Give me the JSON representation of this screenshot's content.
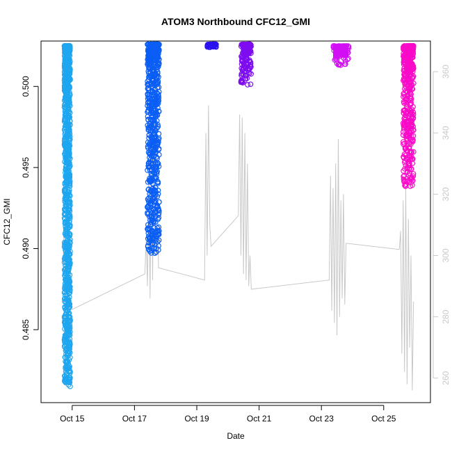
{
  "chart_data": {
    "type": "scatter",
    "title": "ATOM3 Northbound CFC12_GMI",
    "xlabel": "Date",
    "ylabel": "CFC12_GMI",
    "xlim": [
      "2016-10-14T00:00",
      "2016-10-26T12:00"
    ],
    "ylim": [
      0.4805,
      0.5028
    ],
    "y2lim": [
      252,
      370
    ],
    "x_ticks": [
      {
        "label": "Oct 15",
        "value": "2016-10-15"
      },
      {
        "label": "Oct 17",
        "value": "2016-10-17"
      },
      {
        "label": "Oct 19",
        "value": "2016-10-19"
      },
      {
        "label": "Oct 21",
        "value": "2016-10-21"
      },
      {
        "label": "Oct 23",
        "value": "2016-10-23"
      },
      {
        "label": "Oct 25",
        "value": "2016-10-25"
      }
    ],
    "y_ticks": [
      {
        "label": "0.485",
        "value": 0.485
      },
      {
        "label": "0.490",
        "value": 0.49
      },
      {
        "label": "0.495",
        "value": 0.495
      },
      {
        "label": "0.500",
        "value": 0.5
      }
    ],
    "y2_ticks": [
      {
        "label": "260",
        "value": 260
      },
      {
        "label": "280",
        "value": 280
      },
      {
        "label": "300",
        "value": 300
      },
      {
        "label": "320",
        "value": 320
      },
      {
        "label": "340",
        "value": 340
      },
      {
        "label": "360",
        "value": 360
      }
    ],
    "clusters": [
      {
        "x_start": "2016-10-14T18:00",
        "x_end": "2016-10-14T22:30",
        "y_top": 0.5025,
        "y_bottom": 0.4815,
        "color": "#1ea6f0"
      },
      {
        "x_start": "2016-10-17T10:00",
        "x_end": "2016-10-17T19:00",
        "y_top": 0.5026,
        "y_bottom": 0.4897,
        "color": "#0a5ef5"
      },
      {
        "x_start": "2016-10-19T08:00",
        "x_end": "2016-10-19T15:00",
        "y_top": 0.5026,
        "y_bottom": 0.5024,
        "color": "#2a10f0"
      },
      {
        "x_start": "2016-10-20T10:00",
        "x_end": "2016-10-20T18:00",
        "y_top": 0.5026,
        "y_bottom": 0.5001,
        "color": "#7e0cf0"
      },
      {
        "x_start": "2016-10-23T09:00",
        "x_end": "2016-10-23T21:00",
        "y_top": 0.5025,
        "y_bottom": 0.5013,
        "color": "#d20ef5"
      },
      {
        "x_start": "2016-10-25T15:00",
        "x_end": "2016-10-25T23:00",
        "y_top": 0.5025,
        "y_bottom": 0.4938,
        "color": "#fa0ac8"
      }
    ],
    "secondary_series": {
      "color": "#c8c8c8",
      "points": [
        [
          "2016-10-14T17:00",
          292
        ],
        [
          "2016-10-14T17:30",
          310
        ],
        [
          "2016-10-14T18:00",
          270
        ],
        [
          "2016-10-14T18:30",
          312
        ],
        [
          "2016-10-14T19:00",
          266
        ],
        [
          "2016-10-14T19:30",
          305
        ],
        [
          "2016-10-14T20:00",
          268
        ],
        [
          "2016-10-14T20:30",
          300
        ],
        [
          "2016-10-14T21:00",
          272
        ],
        [
          "2016-10-14T21:30",
          280
        ],
        [
          "2016-10-14T22:00",
          282
        ],
        [
          "2016-10-17T08:00",
          294
        ],
        [
          "2016-10-17T09:00",
          305
        ],
        [
          "2016-10-17T10:00",
          290
        ],
        [
          "2016-10-17T11:00",
          330
        ],
        [
          "2016-10-17T12:00",
          286
        ],
        [
          "2016-10-17T13:00",
          340
        ],
        [
          "2016-10-17T14:00",
          292
        ],
        [
          "2016-10-17T15:00",
          350
        ],
        [
          "2016-10-17T16:00",
          300
        ],
        [
          "2016-10-17T17:00",
          346
        ],
        [
          "2016-10-17T18:00",
          310
        ],
        [
          "2016-10-17T18:30",
          296
        ],
        [
          "2016-10-19T06:00",
          292
        ],
        [
          "2016-10-19T07:00",
          340
        ],
        [
          "2016-10-19T08:00",
          300
        ],
        [
          "2016-10-19T09:00",
          349
        ],
        [
          "2016-10-19T10:00",
          310
        ],
        [
          "2016-10-19T11:00",
          303
        ],
        [
          "2016-10-20T08:00",
          313
        ],
        [
          "2016-10-20T09:00",
          346
        ],
        [
          "2016-10-20T10:00",
          300
        ],
        [
          "2016-10-20T11:00",
          345
        ],
        [
          "2016-10-20T12:00",
          294
        ],
        [
          "2016-10-20T13:00",
          340
        ],
        [
          "2016-10-20T14:00",
          292
        ],
        [
          "2016-10-20T15:00",
          330
        ],
        [
          "2016-10-20T16:00",
          290
        ],
        [
          "2016-10-20T17:00",
          300
        ],
        [
          "2016-10-20T18:00",
          289
        ],
        [
          "2016-10-23T06:00",
          292
        ],
        [
          "2016-10-23T07:00",
          326
        ],
        [
          "2016-10-23T08:00",
          282
        ],
        [
          "2016-10-23T09:00",
          322
        ],
        [
          "2016-10-23T10:00",
          278
        ],
        [
          "2016-10-23T11:00",
          330
        ],
        [
          "2016-10-23T12:00",
          274
        ],
        [
          "2016-10-23T13:00",
          338
        ],
        [
          "2016-10-23T14:00",
          280
        ],
        [
          "2016-10-23T15:00",
          318
        ],
        [
          "2016-10-23T16:00",
          286
        ],
        [
          "2016-10-23T17:00",
          320
        ],
        [
          "2016-10-23T18:00",
          284
        ],
        [
          "2016-10-23T19:00",
          304
        ],
        [
          "2016-10-25T12:00",
          302
        ],
        [
          "2016-10-25T13:00",
          308
        ],
        [
          "2016-10-25T14:00",
          268
        ],
        [
          "2016-10-25T15:00",
          318
        ],
        [
          "2016-10-25T16:00",
          262
        ],
        [
          "2016-10-25T17:00",
          322
        ],
        [
          "2016-10-25T18:00",
          258
        ],
        [
          "2016-10-25T19:00",
          312
        ],
        [
          "2016-10-25T20:00",
          270
        ],
        [
          "2016-10-25T21:00",
          300
        ],
        [
          "2016-10-25T22:00",
          256
        ],
        [
          "2016-10-25T23:00",
          285
        ]
      ]
    },
    "grid": false,
    "legend": "none"
  }
}
